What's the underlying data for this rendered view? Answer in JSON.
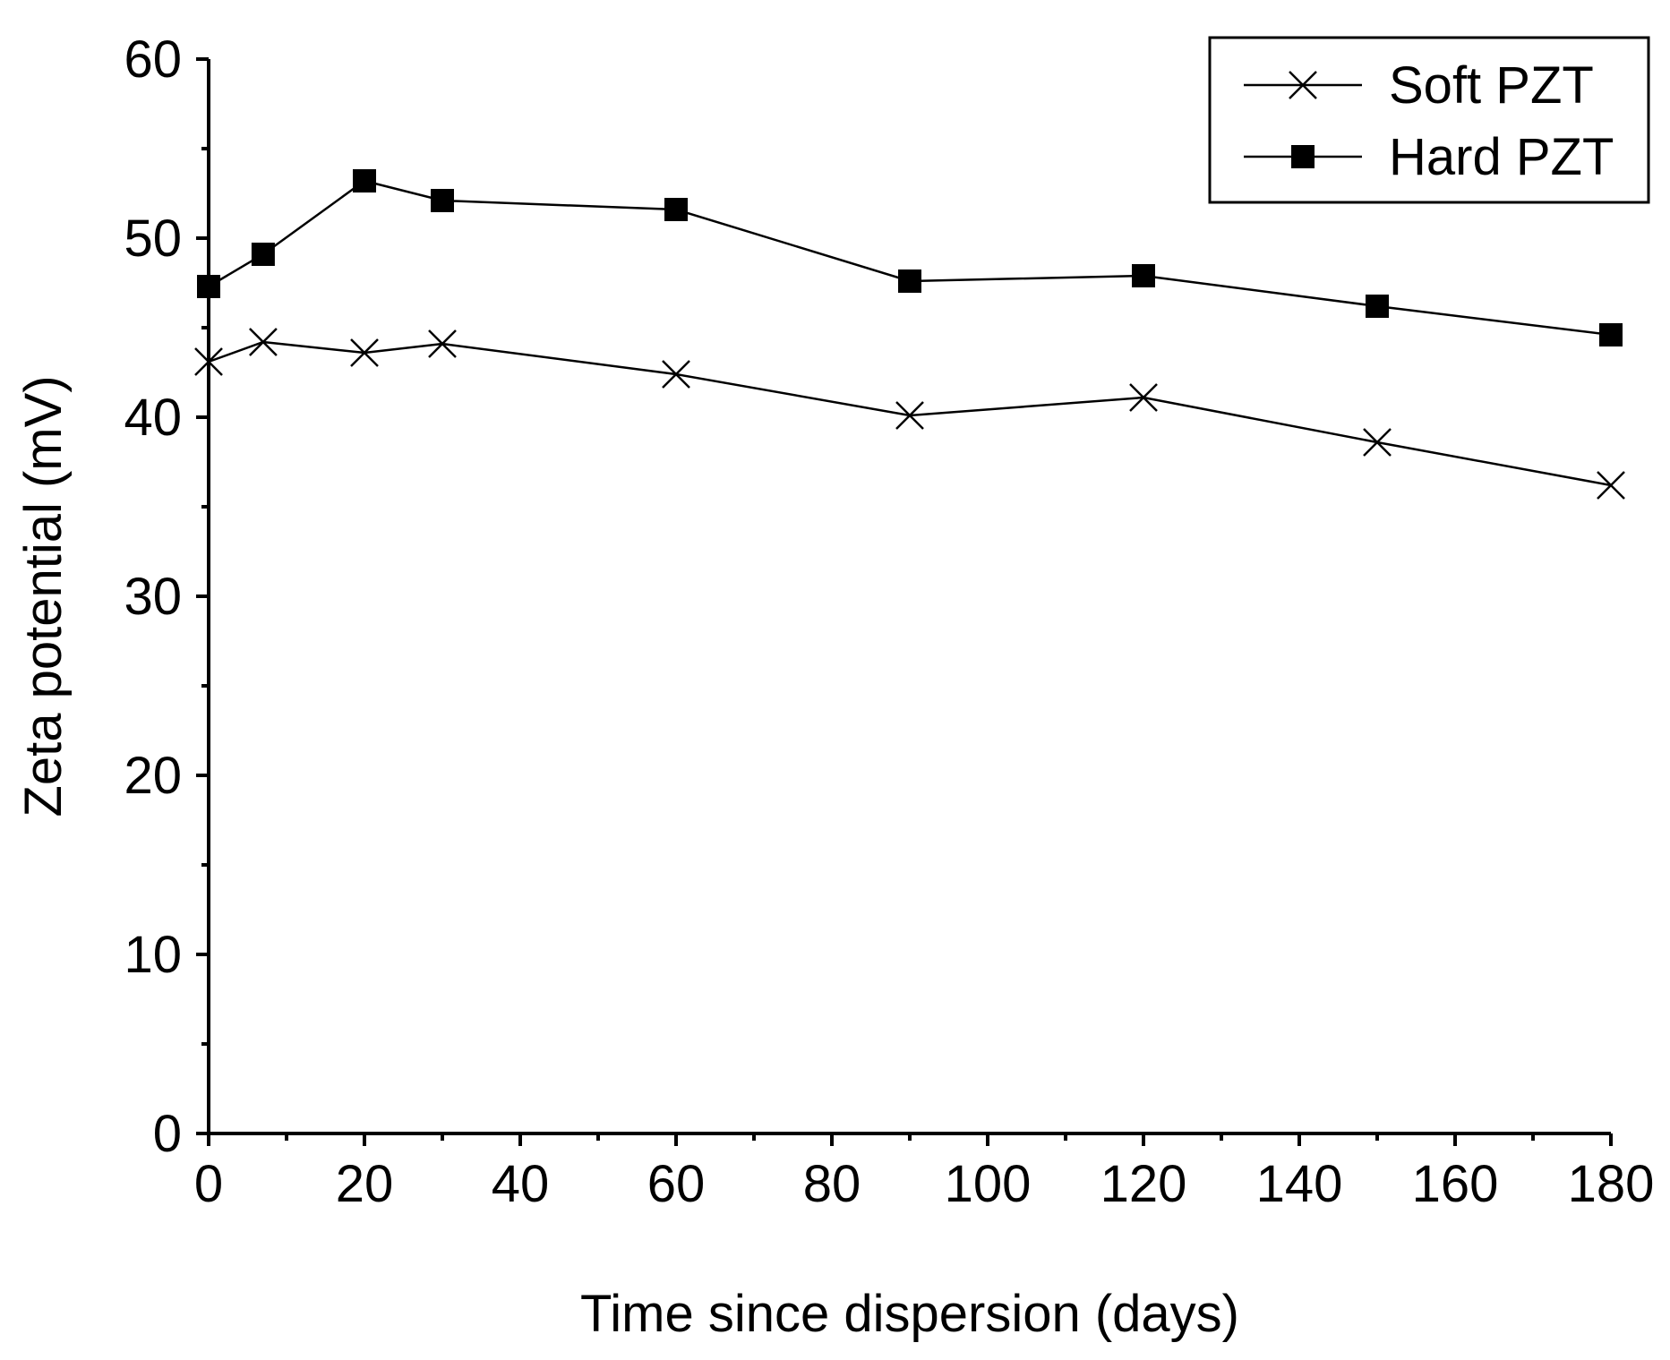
{
  "chart_data": {
    "type": "line",
    "title": "",
    "xlabel": "Time since dispersion (days)",
    "ylabel": "Zeta potential (mV)",
    "xlim": [
      0,
      180
    ],
    "ylim": [
      0,
      60
    ],
    "xticks": [
      0,
      20,
      40,
      60,
      80,
      100,
      120,
      140,
      160,
      180
    ],
    "yticks": [
      0,
      10,
      20,
      30,
      40,
      50,
      60
    ],
    "grid": false,
    "legend_position": "top-right",
    "series": [
      {
        "name": "Soft PZT",
        "marker": "x",
        "x": [
          0,
          7,
          20,
          30,
          60,
          90,
          120,
          150,
          180
        ],
        "y": [
          43.1,
          44.2,
          43.6,
          44.1,
          42.4,
          40.1,
          41.1,
          38.6,
          36.2
        ]
      },
      {
        "name": "Hard PZT",
        "marker": "square",
        "x": [
          0,
          7,
          20,
          30,
          60,
          90,
          120,
          150,
          180
        ],
        "y": [
          47.3,
          49.1,
          53.2,
          52.1,
          51.6,
          47.6,
          47.9,
          46.2,
          44.6
        ]
      }
    ]
  }
}
